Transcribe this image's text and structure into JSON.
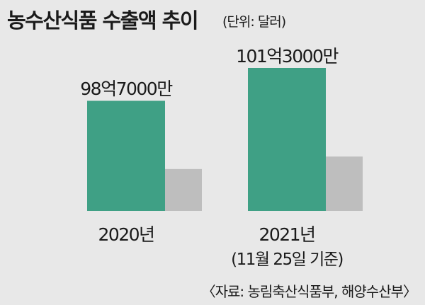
{
  "header": {
    "title": "농수산식품 수출액 추이",
    "unit": "(단위: 달러)"
  },
  "chart_data": {
    "type": "bar",
    "title": "농수산식품 수출액 추이",
    "unit": "(단위: 달러)",
    "categories": [
      "2020년",
      "2021년"
    ],
    "category_notes": [
      "",
      "(11월 25일 기준)"
    ],
    "values": [
      9870000000,
      10130000000
    ],
    "value_labels": [
      "98억7000만",
      "101억3000만"
    ],
    "bar_color": "#3fa085",
    "shadow_color": "#9a9a9a",
    "grid": false,
    "legend": "none"
  },
  "footer": {
    "source": "〈자료: 농림축산식품부, 해양수산부〉"
  }
}
